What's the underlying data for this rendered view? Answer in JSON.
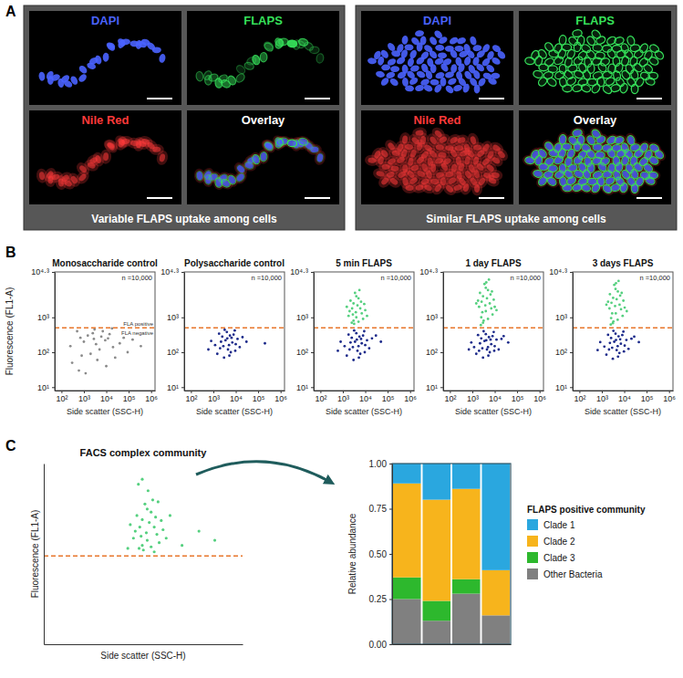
{
  "images": {
    "letter": "A",
    "groups": [
      {
        "caption": "Variable FLAPS uptake among cells",
        "channels": [
          {
            "label": "DAPI",
            "color": "#4a63ff"
          },
          {
            "label": "FLAPS",
            "color": "#36e05a"
          },
          {
            "label": "Nile Red",
            "color": "#ff3a3a"
          },
          {
            "label": "Overlay",
            "color": "#ffffff"
          }
        ]
      },
      {
        "caption": "Similar FLAPS uptake among cells",
        "channels": [
          {
            "label": "DAPI",
            "color": "#4a63ff"
          },
          {
            "label": "FLAPS",
            "color": "#36e05a"
          },
          {
            "label": "Nile Red",
            "color": "#ff3a3a"
          },
          {
            "label": "Overlay",
            "color": "#ffffff"
          }
        ]
      }
    ]
  },
  "chart_data": [
    {
      "panel": "B",
      "type": "scatter",
      "title": "Monosaccharide control",
      "count_label": "n =10,000",
      "gate_labels": [
        "FLA positive",
        "FLA negative"
      ],
      "gate": 500,
      "x_label": "Side scatter (SSC-H)",
      "y_label": "Fluorescence (FL1-A)",
      "log": true,
      "xlim": [
        50,
        1500000
      ],
      "ylim": [
        8,
        19953
      ],
      "xticks": [
        {
          "value": 100,
          "label": "10²"
        },
        {
          "value": 1000,
          "label": "10³"
        },
        {
          "value": 10000,
          "label": "10⁴"
        },
        {
          "value": 100000,
          "label": "10⁵"
        },
        {
          "value": 1000000,
          "label": "10⁶"
        }
      ],
      "yticks": [
        {
          "value": 10,
          "label": "10¹"
        },
        {
          "value": 100,
          "label": "10²"
        },
        {
          "value": 1000,
          "label": "10³"
        },
        {
          "value": 19953,
          "label": "10⁴·³"
        }
      ],
      "series": [
        {
          "color": "#8a8a8a",
          "x": [
            300,
            1000,
            2500,
            5000,
            800,
            3000,
            12000,
            40000,
            150000,
            600,
            2000,
            7000,
            20000,
            1500,
            4000,
            9000,
            350000,
            250,
            60000,
            1200,
            3500,
            18000,
            500,
            6000,
            25000,
            90000,
            2800,
            10000,
            700,
            14000
          ],
          "y": [
            50,
            200,
            350,
            120,
            80,
            450,
            250,
            180,
            230,
            30,
            90,
            400,
            140,
            300,
            60,
            220,
            150,
            150,
            260,
            25,
            170,
            480,
            400,
            280,
            70,
            100,
            240,
            40,
            260,
            330
          ]
        }
      ]
    },
    {
      "type": "scatter",
      "title": "Polysaccharide control",
      "count_label": "n =10,000",
      "gate": 500,
      "x_label": "Side scatter (SSC-H)",
      "log": true,
      "xlim": [
        50,
        1500000
      ],
      "ylim": [
        8,
        19953
      ],
      "xticks": [
        {
          "value": 100,
          "label": "10²"
        },
        {
          "value": 1000,
          "label": "10³"
        },
        {
          "value": 10000,
          "label": "10⁴"
        },
        {
          "value": 100000,
          "label": "10⁵"
        },
        {
          "value": 1000000,
          "label": "10⁶"
        }
      ],
      "yticks": [
        {
          "value": 10,
          "label": "10¹"
        },
        {
          "value": 100,
          "label": "10²"
        },
        {
          "value": 1000,
          "label": "10³"
        },
        {
          "value": 19953,
          "label": "10⁴·³"
        }
      ],
      "series": [
        {
          "color": "#1c2a8a",
          "x": [
            2000,
            3500,
            5000,
            8000,
            1500,
            4000,
            6000,
            12000,
            2500,
            3000,
            7000,
            9000,
            1200,
            20000,
            4500,
            5500,
            2200,
            15000,
            3200,
            800,
            6500,
            10000,
            2800,
            30000,
            1800,
            5200,
            4200,
            9500,
            600,
            200000
          ],
          "y": [
            130,
            220,
            160,
            320,
            90,
            380,
            100,
            240,
            280,
            70,
            190,
            420,
            160,
            270,
            120,
            300,
            200,
            140,
            440,
            210,
            260,
            170,
            150,
            200,
            340,
            80,
            250,
            110,
            120,
            180
          ]
        }
      ]
    },
    {
      "type": "scatter",
      "title": "5 min FLAPS",
      "count_label": "n =10,000",
      "gate": 500,
      "x_label": "Side scatter (SSC-H)",
      "log": true,
      "xlim": [
        50,
        1500000
      ],
      "ylim": [
        8,
        19953
      ],
      "xticks": [
        {
          "value": 100,
          "label": "10²"
        },
        {
          "value": 1000,
          "label": "10³"
        },
        {
          "value": 10000,
          "label": "10⁴"
        },
        {
          "value": 100000,
          "label": "10⁵"
        },
        {
          "value": 1000000,
          "label": "10⁶"
        }
      ],
      "yticks": [
        {
          "value": 10,
          "label": "10¹"
        },
        {
          "value": 100,
          "label": "10²"
        },
        {
          "value": 1000,
          "label": "10³"
        },
        {
          "value": 19953,
          "label": "10⁴·³"
        }
      ],
      "series": [
        {
          "color": "#1c2a8a",
          "x": [
            2000,
            3500,
            5000,
            8000,
            1500,
            4000,
            6000,
            12000,
            2500,
            3000,
            7000,
            9000,
            1200,
            20000,
            4500,
            5500,
            2200,
            15000,
            3200,
            800,
            6500,
            10000,
            2800,
            30000,
            1800,
            5200,
            4200,
            9500,
            600,
            50000
          ],
          "y": [
            120,
            200,
            150,
            300,
            80,
            350,
            90,
            220,
            260,
            60,
            180,
            400,
            150,
            250,
            110,
            280,
            190,
            130,
            420,
            200,
            240,
            160,
            140,
            300,
            320,
            70,
            230,
            100,
            110,
            200
          ]
        },
        {
          "color": "#55d07f",
          "x": [
            2000,
            3000,
            4000,
            5000,
            2500,
            6000,
            3500,
            1800,
            8000,
            4500,
            2200,
            7000,
            3000,
            5500,
            1500,
            10000,
            4000,
            2800,
            6500,
            3200,
            12000,
            2600,
            5000,
            9000,
            3800
          ],
          "y": [
            1500,
            2500,
            1000,
            3500,
            700,
            1800,
            5000,
            1100,
            900,
            2200,
            3000,
            1300,
            800,
            6000,
            2000,
            1600,
            4000,
            1200,
            2800,
            650,
            1100,
            1800,
            750,
            2400,
            1400
          ]
        }
      ]
    },
    {
      "type": "scatter",
      "title": "1 day FLAPS",
      "count_label": "n =10,000",
      "gate": 500,
      "x_label": "Side scatter (SSC-H)",
      "log": true,
      "xlim": [
        50,
        1500000
      ],
      "ylim": [
        8,
        19953
      ],
      "xticks": [
        {
          "value": 100,
          "label": "10²"
        },
        {
          "value": 1000,
          "label": "10³"
        },
        {
          "value": 10000,
          "label": "10⁴"
        },
        {
          "value": 100000,
          "label": "10⁵"
        },
        {
          "value": 1000000,
          "label": "10⁶"
        }
      ],
      "yticks": [
        {
          "value": 10,
          "label": "10¹"
        },
        {
          "value": 100,
          "label": "10²"
        },
        {
          "value": 1000,
          "label": "10³"
        },
        {
          "value": 19953,
          "label": "10⁴·³"
        }
      ],
      "series": [
        {
          "color": "#1c2a8a",
          "x": [
            2000,
            3500,
            5000,
            8000,
            1500,
            4000,
            6000,
            12000,
            2500,
            3000,
            7000,
            9000,
            1200,
            20000,
            4500,
            5500,
            2200,
            15000,
            3200,
            900,
            6500,
            10000,
            2800,
            25000,
            1800,
            5200,
            4200,
            9500,
            700,
            40000
          ],
          "y": [
            110,
            210,
            140,
            290,
            90,
            330,
            100,
            230,
            250,
            70,
            170,
            380,
            140,
            240,
            120,
            270,
            180,
            120,
            400,
            190,
            230,
            150,
            130,
            290,
            310,
            80,
            220,
            110,
            120,
            190
          ]
        },
        {
          "color": "#55d07f",
          "x": [
            2000,
            3000,
            4000,
            5000,
            2500,
            6000,
            3500,
            1800,
            8000,
            4500,
            2200,
            7000,
            3000,
            5500,
            1500,
            10000,
            4000,
            2800,
            6500,
            3200,
            12000,
            2600,
            5000,
            9000,
            3800,
            4200,
            2400,
            7500
          ],
          "y": [
            2000,
            4000,
            1500,
            6000,
            1000,
            2500,
            9000,
            3000,
            1200,
            3500,
            5000,
            1800,
            700,
            12000,
            2500,
            2000,
            7000,
            1400,
            4500,
            800,
            1600,
            2800,
            900,
            3200,
            2200,
            10000,
            600,
            5500
          ]
        }
      ]
    },
    {
      "type": "scatter",
      "title": "3 days FLAPS",
      "count_label": "n =10,000",
      "gate": 500,
      "x_label": "Side scatter (SSC-H)",
      "log": true,
      "xlim": [
        50,
        1500000
      ],
      "ylim": [
        8,
        19953
      ],
      "xticks": [
        {
          "value": 100,
          "label": "10²"
        },
        {
          "value": 1000,
          "label": "10³"
        },
        {
          "value": 10000,
          "label": "10⁴"
        },
        {
          "value": 100000,
          "label": "10⁵"
        },
        {
          "value": 1000000,
          "label": "10⁶"
        }
      ],
      "yticks": [
        {
          "value": 10,
          "label": "10¹"
        },
        {
          "value": 100,
          "label": "10²"
        },
        {
          "value": 1000,
          "label": "10³"
        },
        {
          "value": 19953,
          "label": "10⁴·³"
        }
      ],
      "series": [
        {
          "color": "#1c2a8a",
          "x": [
            2100,
            3600,
            5100,
            8200,
            1600,
            4100,
            6100,
            12500,
            2600,
            3100,
            7100,
            9200,
            1300,
            21000,
            4600,
            5600,
            2300,
            15500,
            3300,
            850,
            6600,
            10500,
            2900,
            28000,
            1900,
            5300,
            4300,
            9700,
            650,
            45000
          ],
          "y": [
            120,
            200,
            150,
            310,
            85,
            340,
            95,
            225,
            255,
            65,
            175,
            390,
            145,
            245,
            115,
            285,
            185,
            125,
            410,
            195,
            235,
            155,
            135,
            280,
            315,
            75,
            225,
            105,
            115,
            195
          ]
        },
        {
          "color": "#55d07f",
          "x": [
            2200,
            3200,
            4200,
            5200,
            2600,
            6200,
            3600,
            1900,
            8500,
            4600,
            2300,
            7200,
            3100,
            5600,
            1600,
            10500,
            4100,
            2900,
            6600,
            3300,
            13000,
            2700,
            5100,
            9200,
            3900,
            4300,
            2500,
            7700
          ],
          "y": [
            1800,
            3600,
            1300,
            5500,
            950,
            2300,
            8500,
            2800,
            1100,
            3300,
            4600,
            1700,
            680,
            11000,
            2300,
            1900,
            6500,
            1300,
            4200,
            760,
            1500,
            2600,
            850,
            3000,
            2100,
            9500,
            620,
            5000
          ]
        }
      ]
    },
    {
      "panel": "C",
      "type": "scatter",
      "title": "FACS complex community",
      "gate": 500,
      "x_label": "Side scatter (SSC-H)",
      "y_label": "Fluorescence (FL1-A)",
      "log": true,
      "tick_labels": false,
      "xlim": [
        10,
        1000000
      ],
      "ylim": [
        10,
        30000
      ],
      "series": [
        {
          "color": "#55d07f",
          "x": [
            2000,
            3000,
            4000,
            5000,
            2500,
            6000,
            3500,
            1800,
            8000,
            4500,
            2200,
            7000,
            3000,
            5500,
            1500,
            10000,
            4000,
            2800,
            6500,
            3200,
            12000,
            2600,
            5000,
            9000,
            3800,
            4200,
            2400,
            7500,
            1300,
            15000,
            200000,
            80000,
            30000,
            3000,
            6000
          ],
          "y": [
            1500,
            2500,
            1000,
            3500,
            700,
            1800,
            5000,
            1100,
            900,
            2200,
            3000,
            1300,
            800,
            6000,
            2000,
            1600,
            4000,
            1200,
            2800,
            650,
            1100,
            1800,
            750,
            2400,
            1400,
            9000,
            12000,
            5500,
            700,
            3000,
            1000,
            1500,
            800,
            15000,
            600
          ]
        }
      ]
    },
    {
      "type": "bar",
      "stacked": true,
      "y_label": "Relative abundance",
      "legend_title": "FLAPS positive community",
      "legend": "right",
      "categories": [
        null,
        null,
        null,
        null
      ],
      "ylim": [
        0,
        1
      ],
      "yticks": [
        {
          "value": 0,
          "label": "0.00"
        },
        {
          "value": 0.25,
          "label": "0.25"
        },
        {
          "value": 0.5,
          "label": "0.50"
        },
        {
          "value": 0.75,
          "label": "0.75"
        },
        {
          "value": 1,
          "label": "1.00"
        }
      ],
      "series": [
        {
          "name": "Other Bacteria",
          "color": "#808080",
          "values": [
            0.25,
            0.13,
            0.28,
            0.16
          ]
        },
        {
          "name": "Clade 3",
          "color": "#2db82d",
          "values": [
            0.12,
            0.11,
            0.08,
            0
          ]
        },
        {
          "name": "Clade 2",
          "color": "#f7b41c",
          "values": [
            0.52,
            0.56,
            0.5,
            0.25
          ]
        },
        {
          "name": "Clade 1",
          "color": "#2aa7df",
          "values": [
            0.11,
            0.2,
            0.14,
            0.59
          ]
        }
      ]
    }
  ]
}
